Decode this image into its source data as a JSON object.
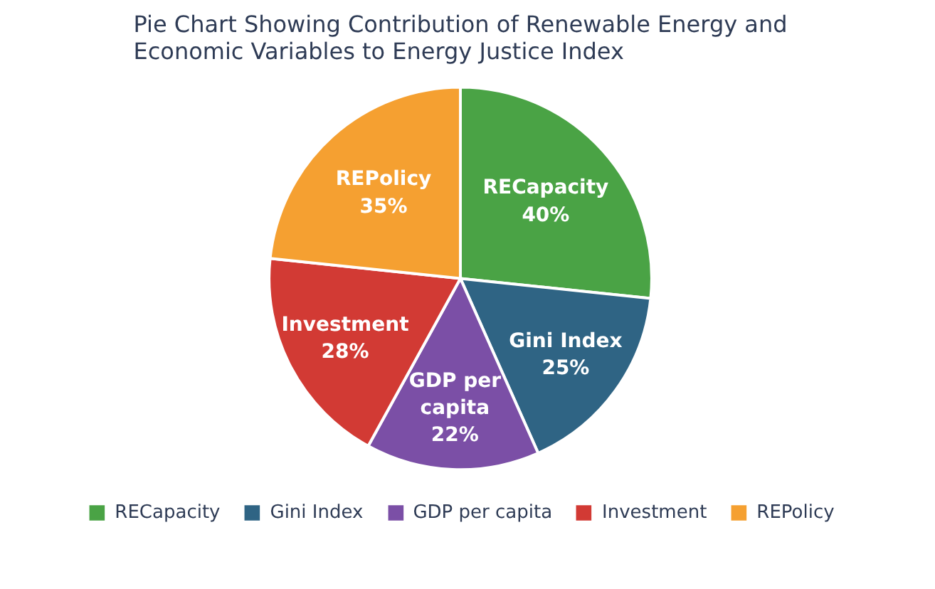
{
  "chart_data": {
    "type": "pie",
    "title": "Pie Chart Showing Contribution of Renewable Energy and Economic Variables to Energy Justice Index",
    "categories": [
      "RECapacity",
      "Gini Index",
      "GDP per capita",
      "Investment",
      "REPolicy"
    ],
    "values": [
      40,
      25,
      22,
      28,
      35
    ],
    "value_labels": [
      "40%",
      "25%",
      "22%",
      "28%",
      "35%"
    ],
    "colors": [
      "#4aa345",
      "#2f6484",
      "#7b4fa6",
      "#d23a34",
      "#f5a031"
    ],
    "legend": "bottom"
  }
}
